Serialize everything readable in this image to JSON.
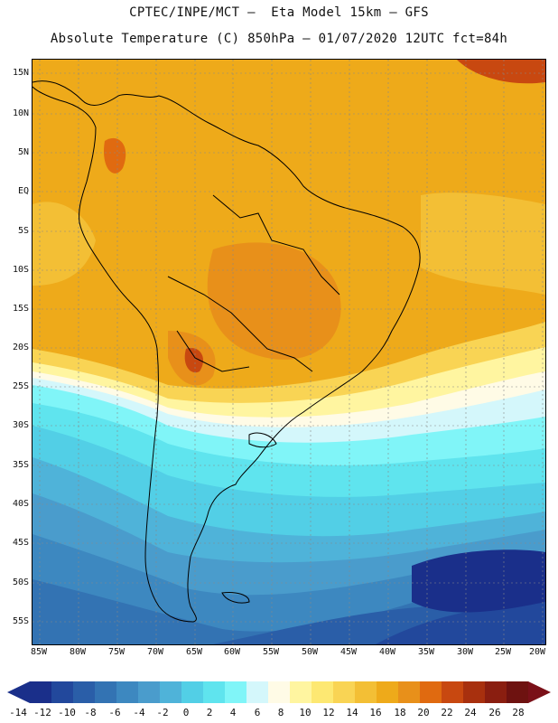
{
  "header": {
    "title_line1": "CPTEC/INPE/MCT –  Eta Model 15km – GFS",
    "title_line2": "Absolute Temperature (C) 850hPa – 01/07/2020 12UTC fct=84h"
  },
  "axes": {
    "lat_labels": [
      "15N",
      "10N",
      "5N",
      "EQ",
      "5S",
      "10S",
      "15S",
      "20S",
      "25S",
      "30S",
      "35S",
      "40S",
      "45S",
      "50S",
      "55S"
    ],
    "lon_labels": [
      "85W",
      "80W",
      "75W",
      "70W",
      "65W",
      "60W",
      "55W",
      "50W",
      "45W",
      "40W",
      "35W",
      "30W",
      "25W",
      "20W"
    ]
  },
  "colorbar": {
    "labels": [
      "-14",
      "-12",
      "-10",
      "-8",
      "-6",
      "-4",
      "-2",
      "0",
      "2",
      "4",
      "6",
      "8",
      "10",
      "12",
      "14",
      "16",
      "18",
      "20",
      "22",
      "24",
      "26",
      "28"
    ],
    "colors": [
      "#1a2f8a",
      "#22489c",
      "#2a5ea8",
      "#3373b3",
      "#3d88c0",
      "#4a9ccc",
      "#4fb3d9",
      "#52cfe6",
      "#5fe4ee",
      "#80f5f8",
      "#d4f7fb",
      "#fffbe6",
      "#fff5a0",
      "#fde872",
      "#f9d454",
      "#f3bf35",
      "#eeaa1a",
      "#e8901a",
      "#e06a10",
      "#c84810",
      "#a8300e",
      "#8a1e10",
      "#6e1210"
    ],
    "under_color": "#1a2f8a",
    "over_color": "#7a1018"
  }
}
